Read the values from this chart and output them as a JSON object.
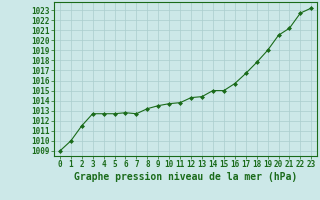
{
  "x": [
    0,
    1,
    2,
    3,
    4,
    5,
    6,
    7,
    8,
    9,
    10,
    11,
    12,
    13,
    14,
    15,
    16,
    17,
    18,
    19,
    20,
    21,
    22,
    23
  ],
  "y": [
    1009,
    1010,
    1011.5,
    1012.7,
    1012.7,
    1012.7,
    1012.8,
    1012.7,
    1013.2,
    1013.5,
    1013.7,
    1013.8,
    1014.3,
    1014.4,
    1015.0,
    1015.0,
    1015.7,
    1016.7,
    1017.8,
    1019.0,
    1020.5,
    1021.2,
    1022.7,
    1023.2
  ],
  "line_color": "#1a6b1a",
  "marker": "D",
  "markersize": 2.0,
  "linewidth": 0.8,
  "bg_color": "#cce8e8",
  "grid_color": "#aacece",
  "xlabel": "Graphe pression niveau de la mer (hPa)",
  "xlabel_fontsize": 7,
  "ylabel_ticks": [
    1009,
    1010,
    1011,
    1012,
    1013,
    1014,
    1015,
    1016,
    1017,
    1018,
    1019,
    1020,
    1021,
    1022,
    1023
  ],
  "ylim": [
    1008.5,
    1023.8
  ],
  "xlim": [
    -0.5,
    23.5
  ],
  "tick_fontsize": 5.5,
  "label_color": "#1a6b1a"
}
